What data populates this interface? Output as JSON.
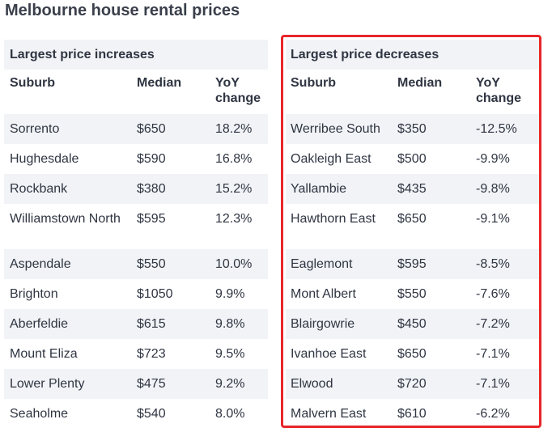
{
  "page": {
    "title": "Melbourne house rental prices",
    "highlight_color": "#e8262a",
    "row_shade_color": "#f1f3f6"
  },
  "increases": {
    "section_title": "Largest price increases",
    "columns": [
      "Suburb",
      "Median",
      "YoY change"
    ],
    "rows": [
      {
        "suburb": "Sorrento",
        "median": "$650",
        "change": "18.2%"
      },
      {
        "suburb": "Hughesdale",
        "median": "$590",
        "change": "16.8%"
      },
      {
        "suburb": "Rockbank",
        "median": "$380",
        "change": "15.2%"
      },
      {
        "suburb": "Williamstown North",
        "median": "$595",
        "change": "12.3%"
      },
      {
        "suburb": "Aspendale",
        "median": "$550",
        "change": "10.0%"
      },
      {
        "suburb": "Brighton",
        "median": "$1050",
        "change": "9.9%"
      },
      {
        "suburb": "Aberfeldie",
        "median": "$615",
        "change": "9.8%"
      },
      {
        "suburb": "Mount Eliza",
        "median": "$723",
        "change": "9.5%"
      },
      {
        "suburb": "Lower Plenty",
        "median": "$475",
        "change": "9.2%"
      },
      {
        "suburb": "Seaholme",
        "median": "$540",
        "change": "8.0%"
      }
    ]
  },
  "decreases": {
    "section_title": "Largest price decreases",
    "columns": [
      "Suburb",
      "Median",
      "YoY change"
    ],
    "rows": [
      {
        "suburb": "Werribee South",
        "median": "$350",
        "change": "-12.5%"
      },
      {
        "suburb": "Oakleigh East",
        "median": "$500",
        "change": "-9.9%"
      },
      {
        "suburb": "Yallambie",
        "median": "$435",
        "change": "-9.8%"
      },
      {
        "suburb": "Hawthorn East",
        "median": "$650",
        "change": "-9.1%"
      },
      {
        "suburb": "Eaglemont",
        "median": "$595",
        "change": "-8.5%"
      },
      {
        "suburb": "Mont Albert",
        "median": "$550",
        "change": "-7.6%"
      },
      {
        "suburb": "Blairgowrie",
        "median": "$450",
        "change": "-7.2%"
      },
      {
        "suburb": "Ivanhoe East",
        "median": "$650",
        "change": "-7.1%"
      },
      {
        "suburb": "Elwood",
        "median": "$720",
        "change": "-7.1%"
      },
      {
        "suburb": "Malvern East",
        "median": "$610",
        "change": "-6.2%"
      }
    ]
  }
}
